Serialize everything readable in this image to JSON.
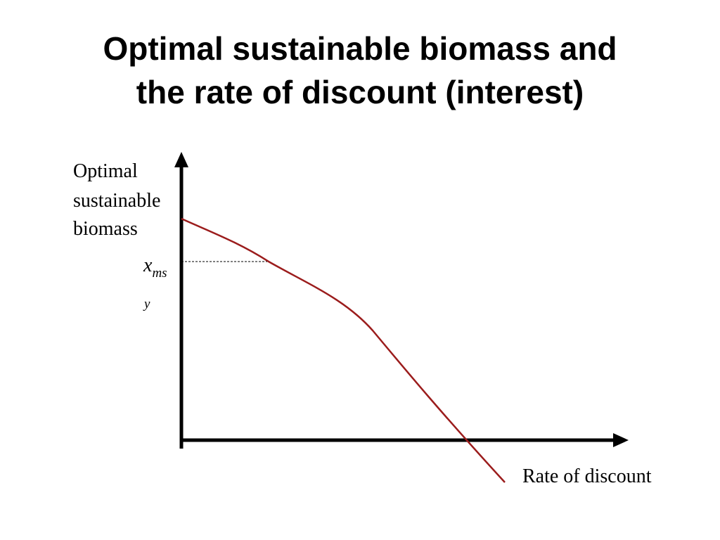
{
  "slide": {
    "title_line1": "Optimal sustainable biomass and",
    "title_line2": "the rate of discount (interest)"
  },
  "diagram": {
    "y_axis_label_lines": [
      "Optimal",
      "sustainable",
      "biomass"
    ],
    "x_axis_label": "Rate of discount",
    "marker_symbol": "x",
    "marker_subscript": "ms",
    "marker_subscript_wrap": "y",
    "curve_color": "#9b1c1c",
    "axis_color": "#000000"
  }
}
